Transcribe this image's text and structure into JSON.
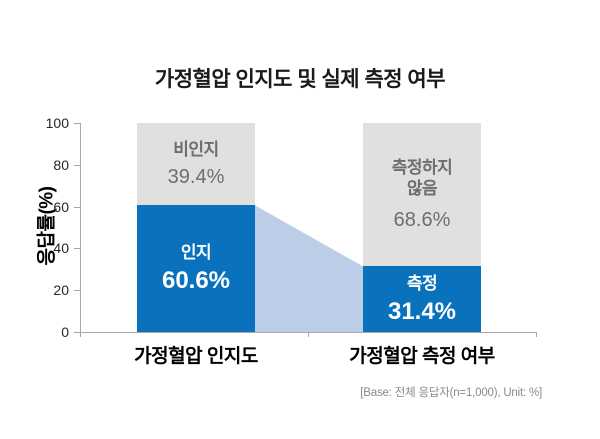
{
  "title": "가정혈압 인지도 및 실제 측정 여부",
  "y_axis": {
    "label": "응답률(%)",
    "ticks": [
      "100",
      "80",
      "60",
      "40",
      "20",
      "0"
    ]
  },
  "footer": "[Base: 전체 응답자(n=1,000), Unit: %]",
  "chart_data": {
    "type": "bar",
    "variant": "100-percent-stacked-columns-with-flow-band",
    "title": "가정혈압 인지도 및 실제 측정 여부",
    "ylabel": "응답률(%)",
    "ylim": [
      0,
      100
    ],
    "yticks": [
      0,
      20,
      40,
      60,
      80,
      100
    ],
    "grid": false,
    "legend": "none",
    "categories": [
      "가정혈압 인지도",
      "가정혈압 측정 여부"
    ],
    "series": [
      {
        "name": "gray-top-segment",
        "labels": [
          "비인지",
          "측정하지 않음"
        ],
        "values": [
          39.4,
          68.6
        ]
      },
      {
        "name": "blue-bottom-segment",
        "labels": [
          "인지",
          "측정"
        ],
        "values": [
          60.6,
          31.4
        ]
      }
    ],
    "display": {
      "gray_labels": [
        "비인지",
        "측정하지\n않음"
      ],
      "gray_values": [
        "39.4%",
        "68.6%"
      ],
      "blue_labels": [
        "인지",
        "측정"
      ],
      "blue_values": [
        "60.6%",
        "31.4%"
      ]
    },
    "base_note": "[Base: 전체 응답자(n=1,000), Unit: %]",
    "colors": {
      "bottom_segment": "#0A71BC",
      "top_segment": "#E0E0DE",
      "flow_band": "#BCCDE8",
      "axis": "#A8A8A8",
      "gray_label_text": "#6E6E6E",
      "blue_label_text": "#FFFFFF",
      "title_text": "#1A1A1A",
      "footer_text": "#8A8A8A"
    }
  }
}
